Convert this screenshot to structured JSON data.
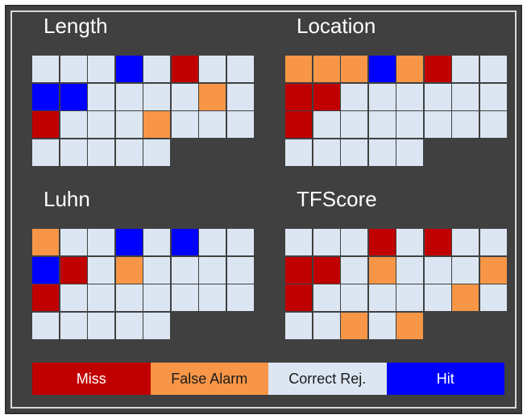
{
  "colors": {
    "miss": "#c00000",
    "false_alarm": "#f79646",
    "correct_rej": "#dce6f2",
    "hit": "#0000ff"
  },
  "panels": [
    {
      "title": "Length",
      "rows": [
        [
          "C",
          "C",
          "C",
          "H",
          "C",
          "M",
          "C",
          "C"
        ],
        [
          "H",
          "H",
          "C",
          "C",
          "C",
          "C",
          "F",
          "C"
        ],
        [
          "M",
          "C",
          "C",
          "C",
          "F",
          "C",
          "C",
          "C"
        ],
        [
          "C",
          "C",
          "C",
          "C",
          "C"
        ]
      ]
    },
    {
      "title": "Location",
      "rows": [
        [
          "F",
          "F",
          "F",
          "H",
          "F",
          "M",
          "C",
          "C"
        ],
        [
          "M",
          "M",
          "C",
          "C",
          "C",
          "C",
          "C",
          "C"
        ],
        [
          "M",
          "C",
          "C",
          "C",
          "C",
          "C",
          "C",
          "C"
        ],
        [
          "C",
          "C",
          "C",
          "C",
          "C"
        ]
      ]
    },
    {
      "title": "Luhn",
      "rows": [
        [
          "F",
          "C",
          "C",
          "H",
          "C",
          "H",
          "C",
          "C"
        ],
        [
          "H",
          "M",
          "C",
          "F",
          "C",
          "C",
          "C",
          "C"
        ],
        [
          "M",
          "C",
          "C",
          "C",
          "C",
          "C",
          "C",
          "C"
        ],
        [
          "C",
          "C",
          "C",
          "C",
          "C"
        ]
      ]
    },
    {
      "title": "TFScore",
      "rows": [
        [
          "C",
          "C",
          "C",
          "M",
          "C",
          "M",
          "C",
          "C"
        ],
        [
          "M",
          "M",
          "C",
          "F",
          "C",
          "C",
          "C",
          "F"
        ],
        [
          "M",
          "C",
          "C",
          "C",
          "C",
          "C",
          "F",
          "C"
        ],
        [
          "C",
          "C",
          "F",
          "C",
          "F"
        ]
      ]
    }
  ],
  "legend": [
    {
      "key": "miss",
      "label": "Miss"
    },
    {
      "key": "false_alarm",
      "label": "False Alarm"
    },
    {
      "key": "correct_rej",
      "label": "Correct Rej."
    },
    {
      "key": "hit",
      "label": "Hit"
    }
  ]
}
